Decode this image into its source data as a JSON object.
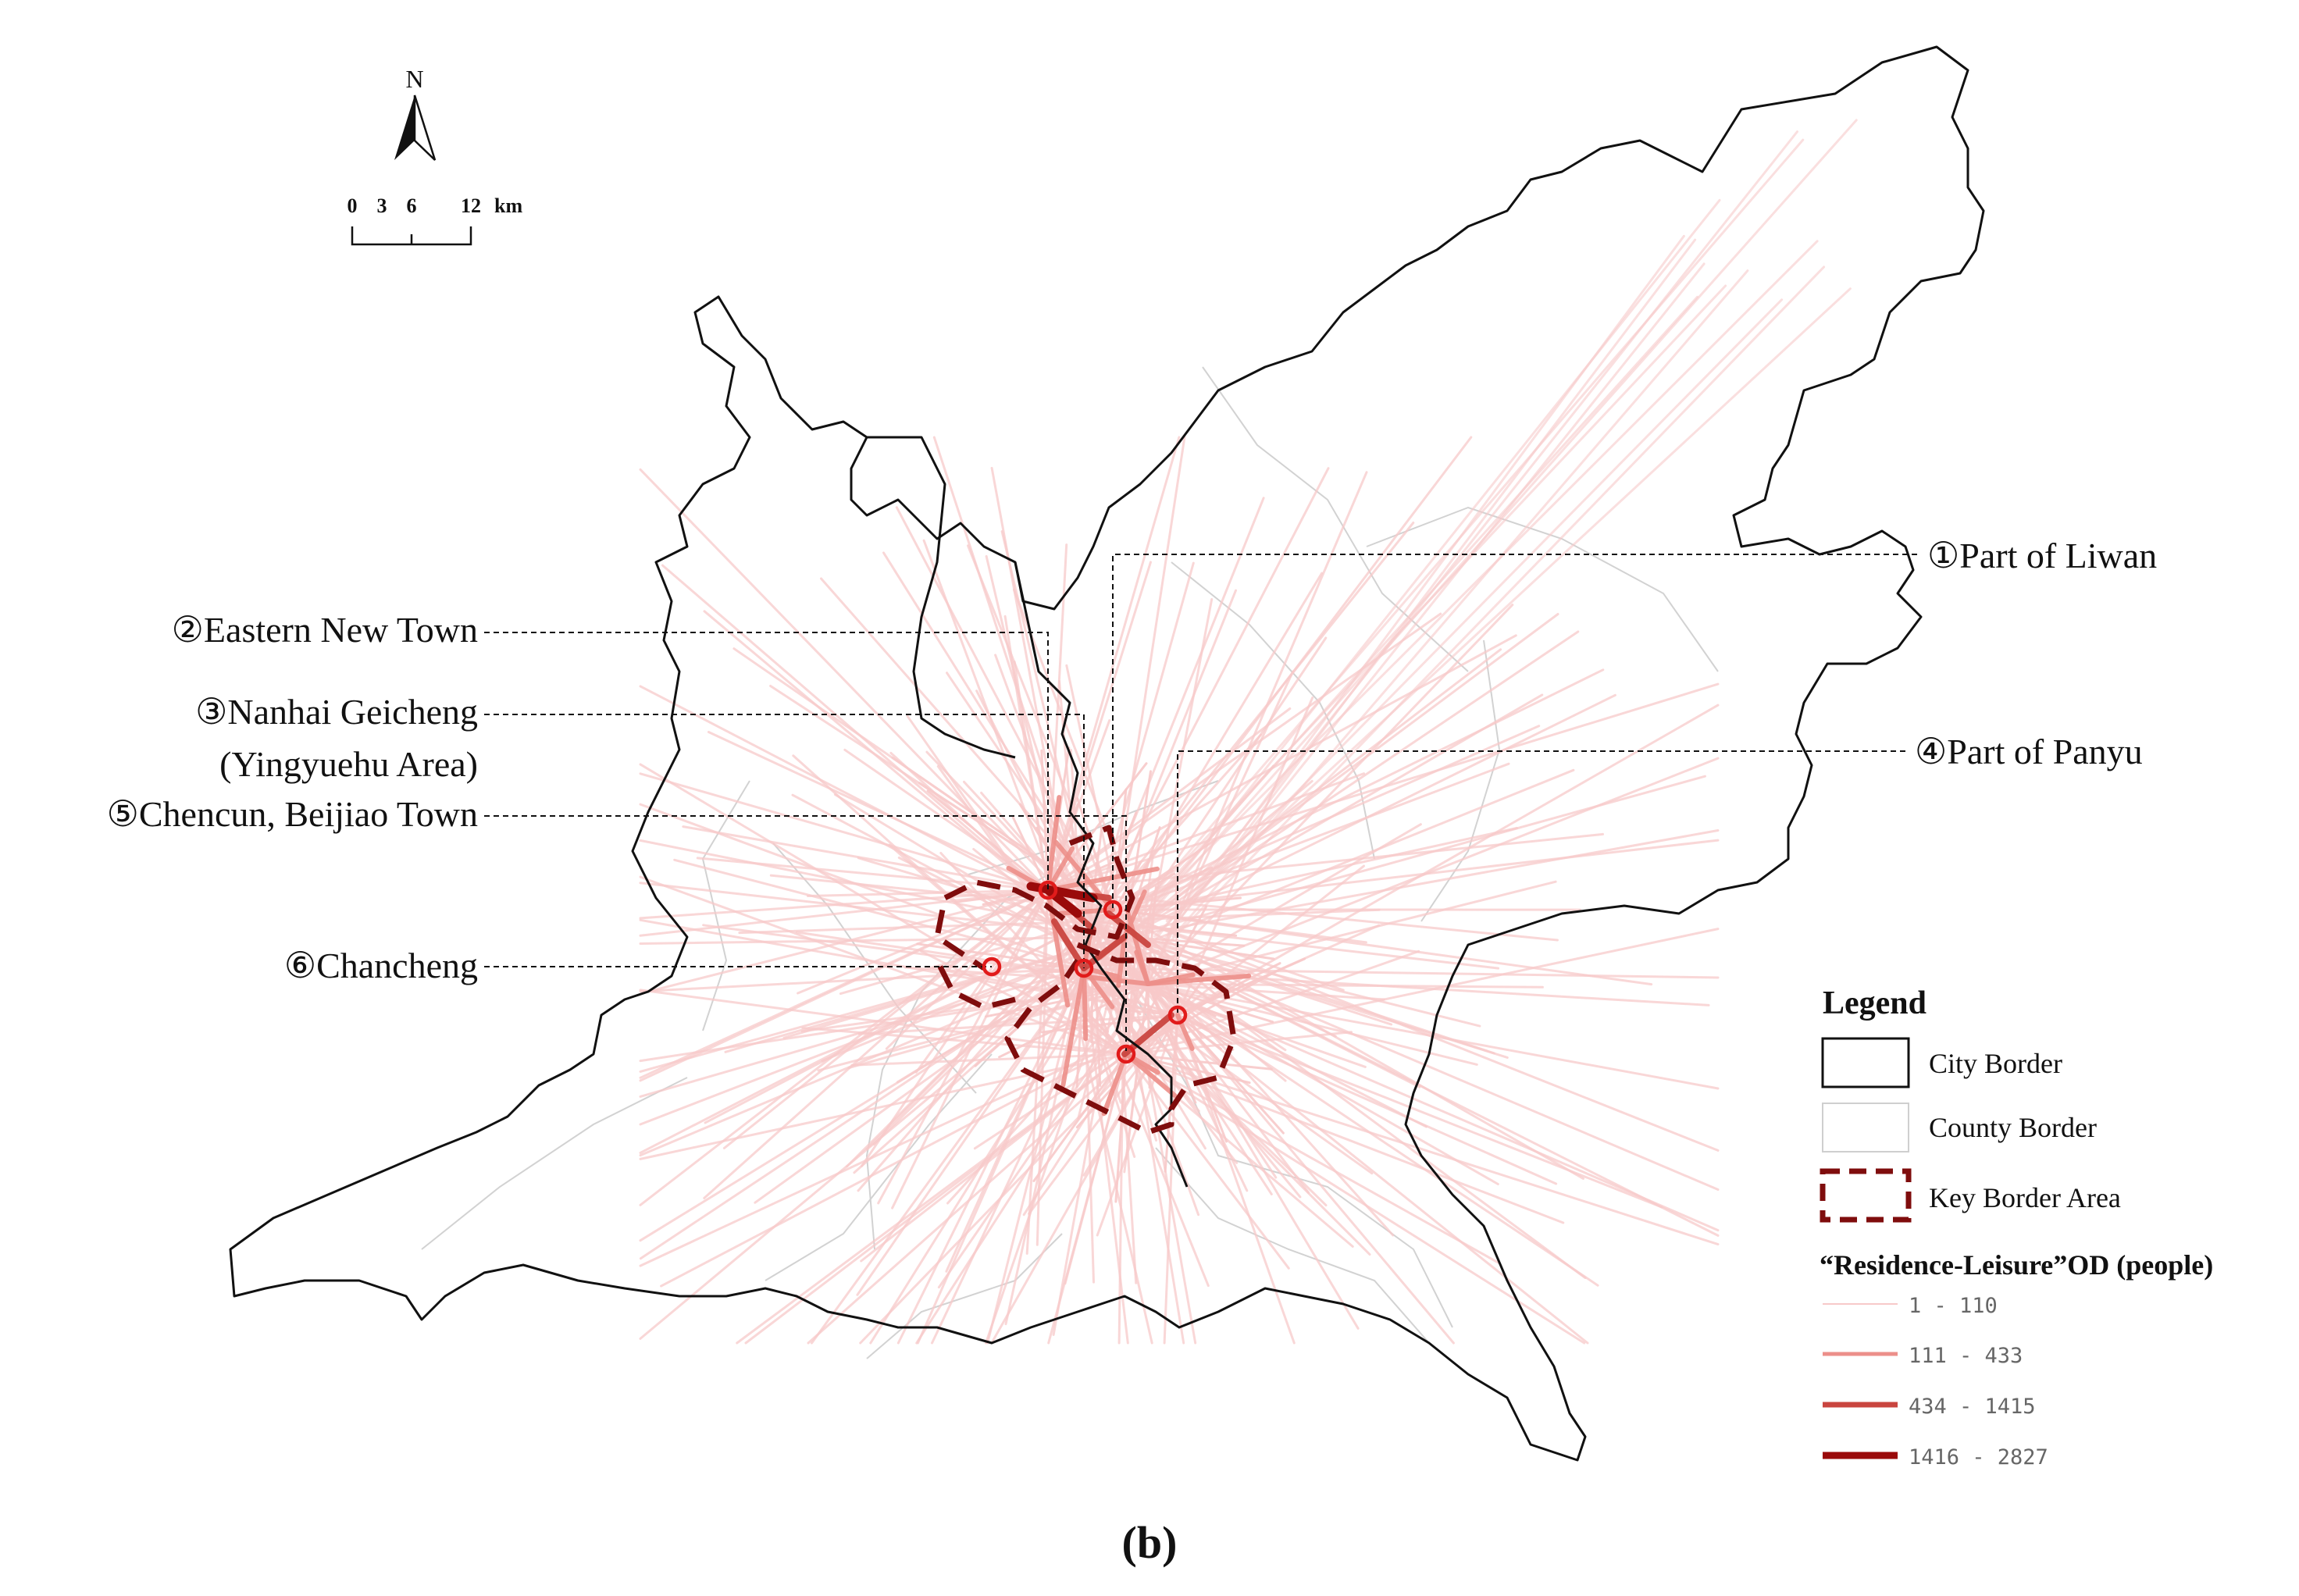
{
  "north_arrow": {
    "label": "N"
  },
  "scale_bar": {
    "ticks": [
      "0",
      "3",
      "6",
      "12"
    ],
    "unit": "km"
  },
  "callouts": [
    {
      "id": "1",
      "marker": "①",
      "text": "Part of Liwan"
    },
    {
      "id": "2",
      "marker": "②",
      "text": "Eastern New Town"
    },
    {
      "id": "3",
      "marker": "③",
      "text": "Nanhai Geicheng",
      "subtext": "(Yingyuehu Area)"
    },
    {
      "id": "4",
      "marker": "④",
      "text": "Part of Panyu"
    },
    {
      "id": "5",
      "marker": "⑤",
      "text": "Chencun, Beijiao Town"
    },
    {
      "id": "6",
      "marker": "⑥",
      "text": "Chancheng"
    }
  ],
  "legend": {
    "title": "Legend",
    "items": [
      {
        "label": "City Border"
      },
      {
        "label": "County Border"
      },
      {
        "label": "Key Border Area"
      }
    ],
    "od_title": "“Residence-Leisure”OD (people)",
    "od_classes": [
      {
        "label": "1 - 110",
        "color": "#f7c9c9"
      },
      {
        "label": "111 - 433",
        "color": "#ec8f8a"
      },
      {
        "label": "434 - 1415",
        "color": "#c9453f"
      },
      {
        "label": "1416 - 2827",
        "color": "#9a0a0a"
      }
    ]
  },
  "colors": {
    "city_border": "#111111",
    "county_border": "#cfcfcf",
    "key_border": "#7f0d0d",
    "marker": "#e11b1b"
  },
  "caption": "(b)"
}
